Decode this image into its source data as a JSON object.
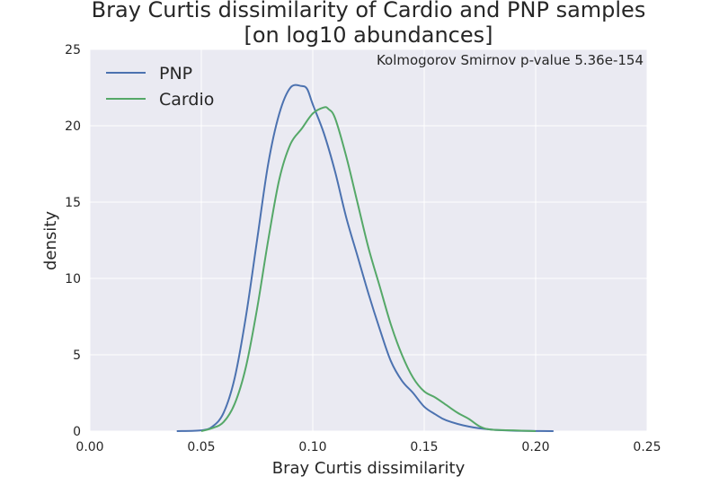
{
  "chart_data": {
    "type": "line",
    "title_lines": [
      "Bray Curtis dissimilarity of Cardio and PNP samples",
      "[on log10 abundances]"
    ],
    "xlabel": "Bray Curtis dissimilarity",
    "ylabel": "density",
    "xlim": [
      0.0,
      0.25
    ],
    "ylim": [
      0,
      25
    ],
    "xticks": [
      0.0,
      0.05,
      0.1,
      0.15,
      0.2,
      0.25
    ],
    "xtick_labels": [
      "0.00",
      "0.05",
      "0.10",
      "0.15",
      "0.20",
      "0.25"
    ],
    "yticks": [
      0,
      5,
      10,
      15,
      20,
      25
    ],
    "ytick_labels": [
      "0",
      "5",
      "10",
      "15",
      "20",
      "25"
    ],
    "grid": true,
    "legend_position": "top-left",
    "annotation": "Kolmogorov Smirnov p-value 5.36e-154",
    "colors": {
      "background": "#eaeaf2",
      "grid": "#ffffff",
      "text": "#262626"
    },
    "series": [
      {
        "name": "PNP",
        "color": "#4c72b0",
        "x": [
          0.039,
          0.05,
          0.055,
          0.06,
          0.065,
          0.07,
          0.075,
          0.08,
          0.085,
          0.09,
          0.095,
          0.0975,
          0.1,
          0.105,
          0.11,
          0.115,
          0.12,
          0.125,
          0.13,
          0.135,
          0.14,
          0.145,
          0.15,
          0.155,
          0.16,
          0.17,
          0.18,
          0.19,
          0.2,
          0.208
        ],
        "y": [
          0.0,
          0.05,
          0.3,
          1.2,
          3.5,
          7.5,
          12.5,
          17.5,
          20.8,
          22.5,
          22.6,
          22.4,
          21.4,
          19.5,
          17.0,
          14.0,
          11.5,
          9.0,
          6.7,
          4.6,
          3.3,
          2.5,
          1.6,
          1.1,
          0.7,
          0.3,
          0.1,
          0.03,
          0.01,
          0.0
        ]
      },
      {
        "name": "Cardio",
        "color": "#55a868",
        "x": [
          0.05,
          0.055,
          0.06,
          0.065,
          0.07,
          0.075,
          0.08,
          0.085,
          0.09,
          0.095,
          0.1,
          0.105,
          0.107,
          0.11,
          0.115,
          0.12,
          0.125,
          0.13,
          0.135,
          0.14,
          0.145,
          0.15,
          0.155,
          0.16,
          0.165,
          0.17,
          0.175,
          0.18,
          0.19,
          0.2
        ],
        "y": [
          0.0,
          0.2,
          0.6,
          1.8,
          4.2,
          8.0,
          12.5,
          16.5,
          18.8,
          19.8,
          20.8,
          21.2,
          21.1,
          20.5,
          18.0,
          15.0,
          12.0,
          9.5,
          7.0,
          5.0,
          3.5,
          2.6,
          2.2,
          1.7,
          1.2,
          0.8,
          0.3,
          0.1,
          0.05,
          0.0
        ]
      }
    ]
  }
}
